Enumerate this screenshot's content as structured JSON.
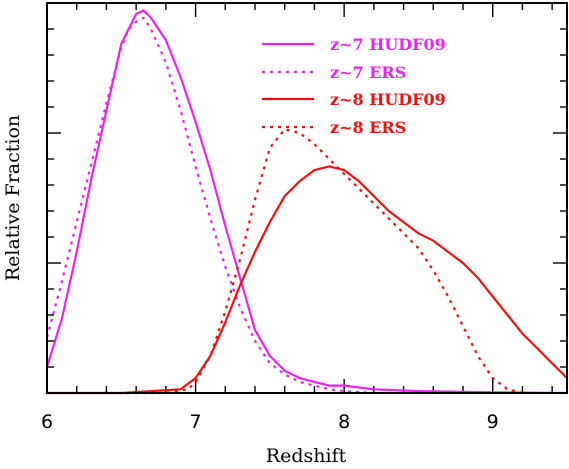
{
  "chart_data": {
    "type": "line",
    "xlabel": "Redshift",
    "ylabel": "Relative Fraction",
    "xlim": [
      6.0,
      9.5
    ],
    "ylim": [
      0,
      1.05
    ],
    "x_ticks": [
      6,
      7,
      8,
      9
    ],
    "x_tick_labels": [
      "6",
      "7",
      "8",
      "9"
    ],
    "y_tick_labels_shown": false,
    "grid": false,
    "legend_position": "top-right",
    "series": [
      {
        "name": "z~7 HUDF09",
        "color": "#ee22ee",
        "style": "solid",
        "x": [
          6.0,
          6.1,
          6.2,
          6.3,
          6.4,
          6.5,
          6.6,
          6.65,
          6.7,
          6.8,
          6.9,
          7.0,
          7.1,
          7.2,
          7.3,
          7.4,
          7.5,
          7.6,
          7.7,
          7.8,
          7.9,
          8.0,
          8.2,
          8.5,
          9.0,
          9.5
        ],
        "y": [
          0.07,
          0.2,
          0.38,
          0.58,
          0.76,
          0.94,
          1.02,
          1.03,
          1.01,
          0.95,
          0.85,
          0.73,
          0.6,
          0.45,
          0.31,
          0.17,
          0.1,
          0.06,
          0.04,
          0.03,
          0.02,
          0.02,
          0.01,
          0.005,
          0.002,
          0.0
        ]
      },
      {
        "name": "z~7 ERS",
        "color": "#ee22ee",
        "style": "dotted",
        "x": [
          6.0,
          6.1,
          6.2,
          6.3,
          6.4,
          6.5,
          6.55,
          6.6,
          6.65,
          6.7,
          6.8,
          6.9,
          7.0,
          7.1,
          7.2,
          7.3,
          7.4,
          7.5,
          7.6,
          7.7,
          7.8,
          7.9,
          8.0,
          8.2
        ],
        "y": [
          0.15,
          0.3,
          0.46,
          0.62,
          0.78,
          0.93,
          0.98,
          1.0,
          1.01,
          0.98,
          0.89,
          0.76,
          0.61,
          0.47,
          0.34,
          0.23,
          0.14,
          0.08,
          0.05,
          0.03,
          0.02,
          0.01,
          0.005,
          0.0
        ]
      },
      {
        "name": "z~8 HUDF09",
        "color": "#ee1111",
        "style": "solid",
        "x": [
          6.0,
          6.5,
          6.9,
          7.0,
          7.1,
          7.2,
          7.3,
          7.4,
          7.5,
          7.6,
          7.7,
          7.8,
          7.9,
          8.0,
          8.1,
          8.2,
          8.3,
          8.4,
          8.5,
          8.6,
          8.7,
          8.8,
          8.9,
          9.0,
          9.1,
          9.2,
          9.3,
          9.4,
          9.5
        ],
        "y": [
          0.0,
          0.0,
          0.01,
          0.04,
          0.1,
          0.19,
          0.29,
          0.38,
          0.46,
          0.53,
          0.57,
          0.6,
          0.61,
          0.6,
          0.57,
          0.53,
          0.49,
          0.46,
          0.43,
          0.41,
          0.38,
          0.35,
          0.31,
          0.26,
          0.21,
          0.16,
          0.12,
          0.08,
          0.04
        ]
      },
      {
        "name": "z~8 ERS",
        "color": "#ee1111",
        "style": "dotted",
        "x": [
          6.0,
          6.8,
          6.95,
          7.0,
          7.1,
          7.2,
          7.3,
          7.4,
          7.5,
          7.6,
          7.7,
          7.8,
          7.9,
          8.0,
          8.1,
          8.2,
          8.3,
          8.4,
          8.5,
          8.6,
          8.7,
          8.8,
          8.9,
          9.0,
          9.1,
          9.2
        ],
        "y": [
          0.0,
          0.0,
          0.01,
          0.03,
          0.1,
          0.22,
          0.36,
          0.52,
          0.66,
          0.71,
          0.7,
          0.67,
          0.63,
          0.59,
          0.55,
          0.51,
          0.47,
          0.43,
          0.39,
          0.33,
          0.26,
          0.18,
          0.1,
          0.04,
          0.01,
          0.0
        ]
      }
    ]
  }
}
